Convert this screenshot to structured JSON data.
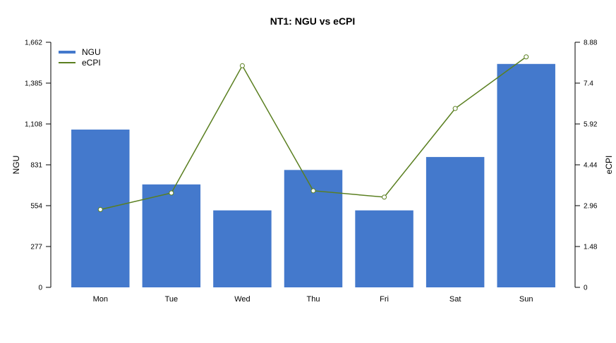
{
  "chart_data": {
    "type": "bar",
    "title": "NT1: NGU vs eCPI",
    "categories": [
      "Mon",
      "Tue",
      "Wed",
      "Thu",
      "Fri",
      "Sat",
      "Sun"
    ],
    "series": [
      {
        "name": "NGU",
        "type": "bar",
        "axis": "left",
        "color": "#4479CC",
        "values": [
          1070,
          698,
          522,
          796,
          522,
          884,
          1515
        ]
      },
      {
        "name": "eCPI",
        "type": "line",
        "axis": "right",
        "color": "#5A7F20",
        "values": [
          2.82,
          3.42,
          8.03,
          3.5,
          3.27,
          6.48,
          8.35
        ]
      }
    ],
    "ylabel": "NGU",
    "ylabel_right": "eCPI",
    "ylim": [
      0,
      1662
    ],
    "ylim_right": [
      0,
      8.88
    ],
    "y_ticks": [
      "0",
      "277",
      "554",
      "831",
      "1,108",
      "1,385",
      "1,662"
    ],
    "y_ticks_right": [
      "0",
      "1.48",
      "2.96",
      "4.44",
      "5.92",
      "7.4",
      "8.88"
    ],
    "legend_position": "top-left",
    "grid": false
  }
}
